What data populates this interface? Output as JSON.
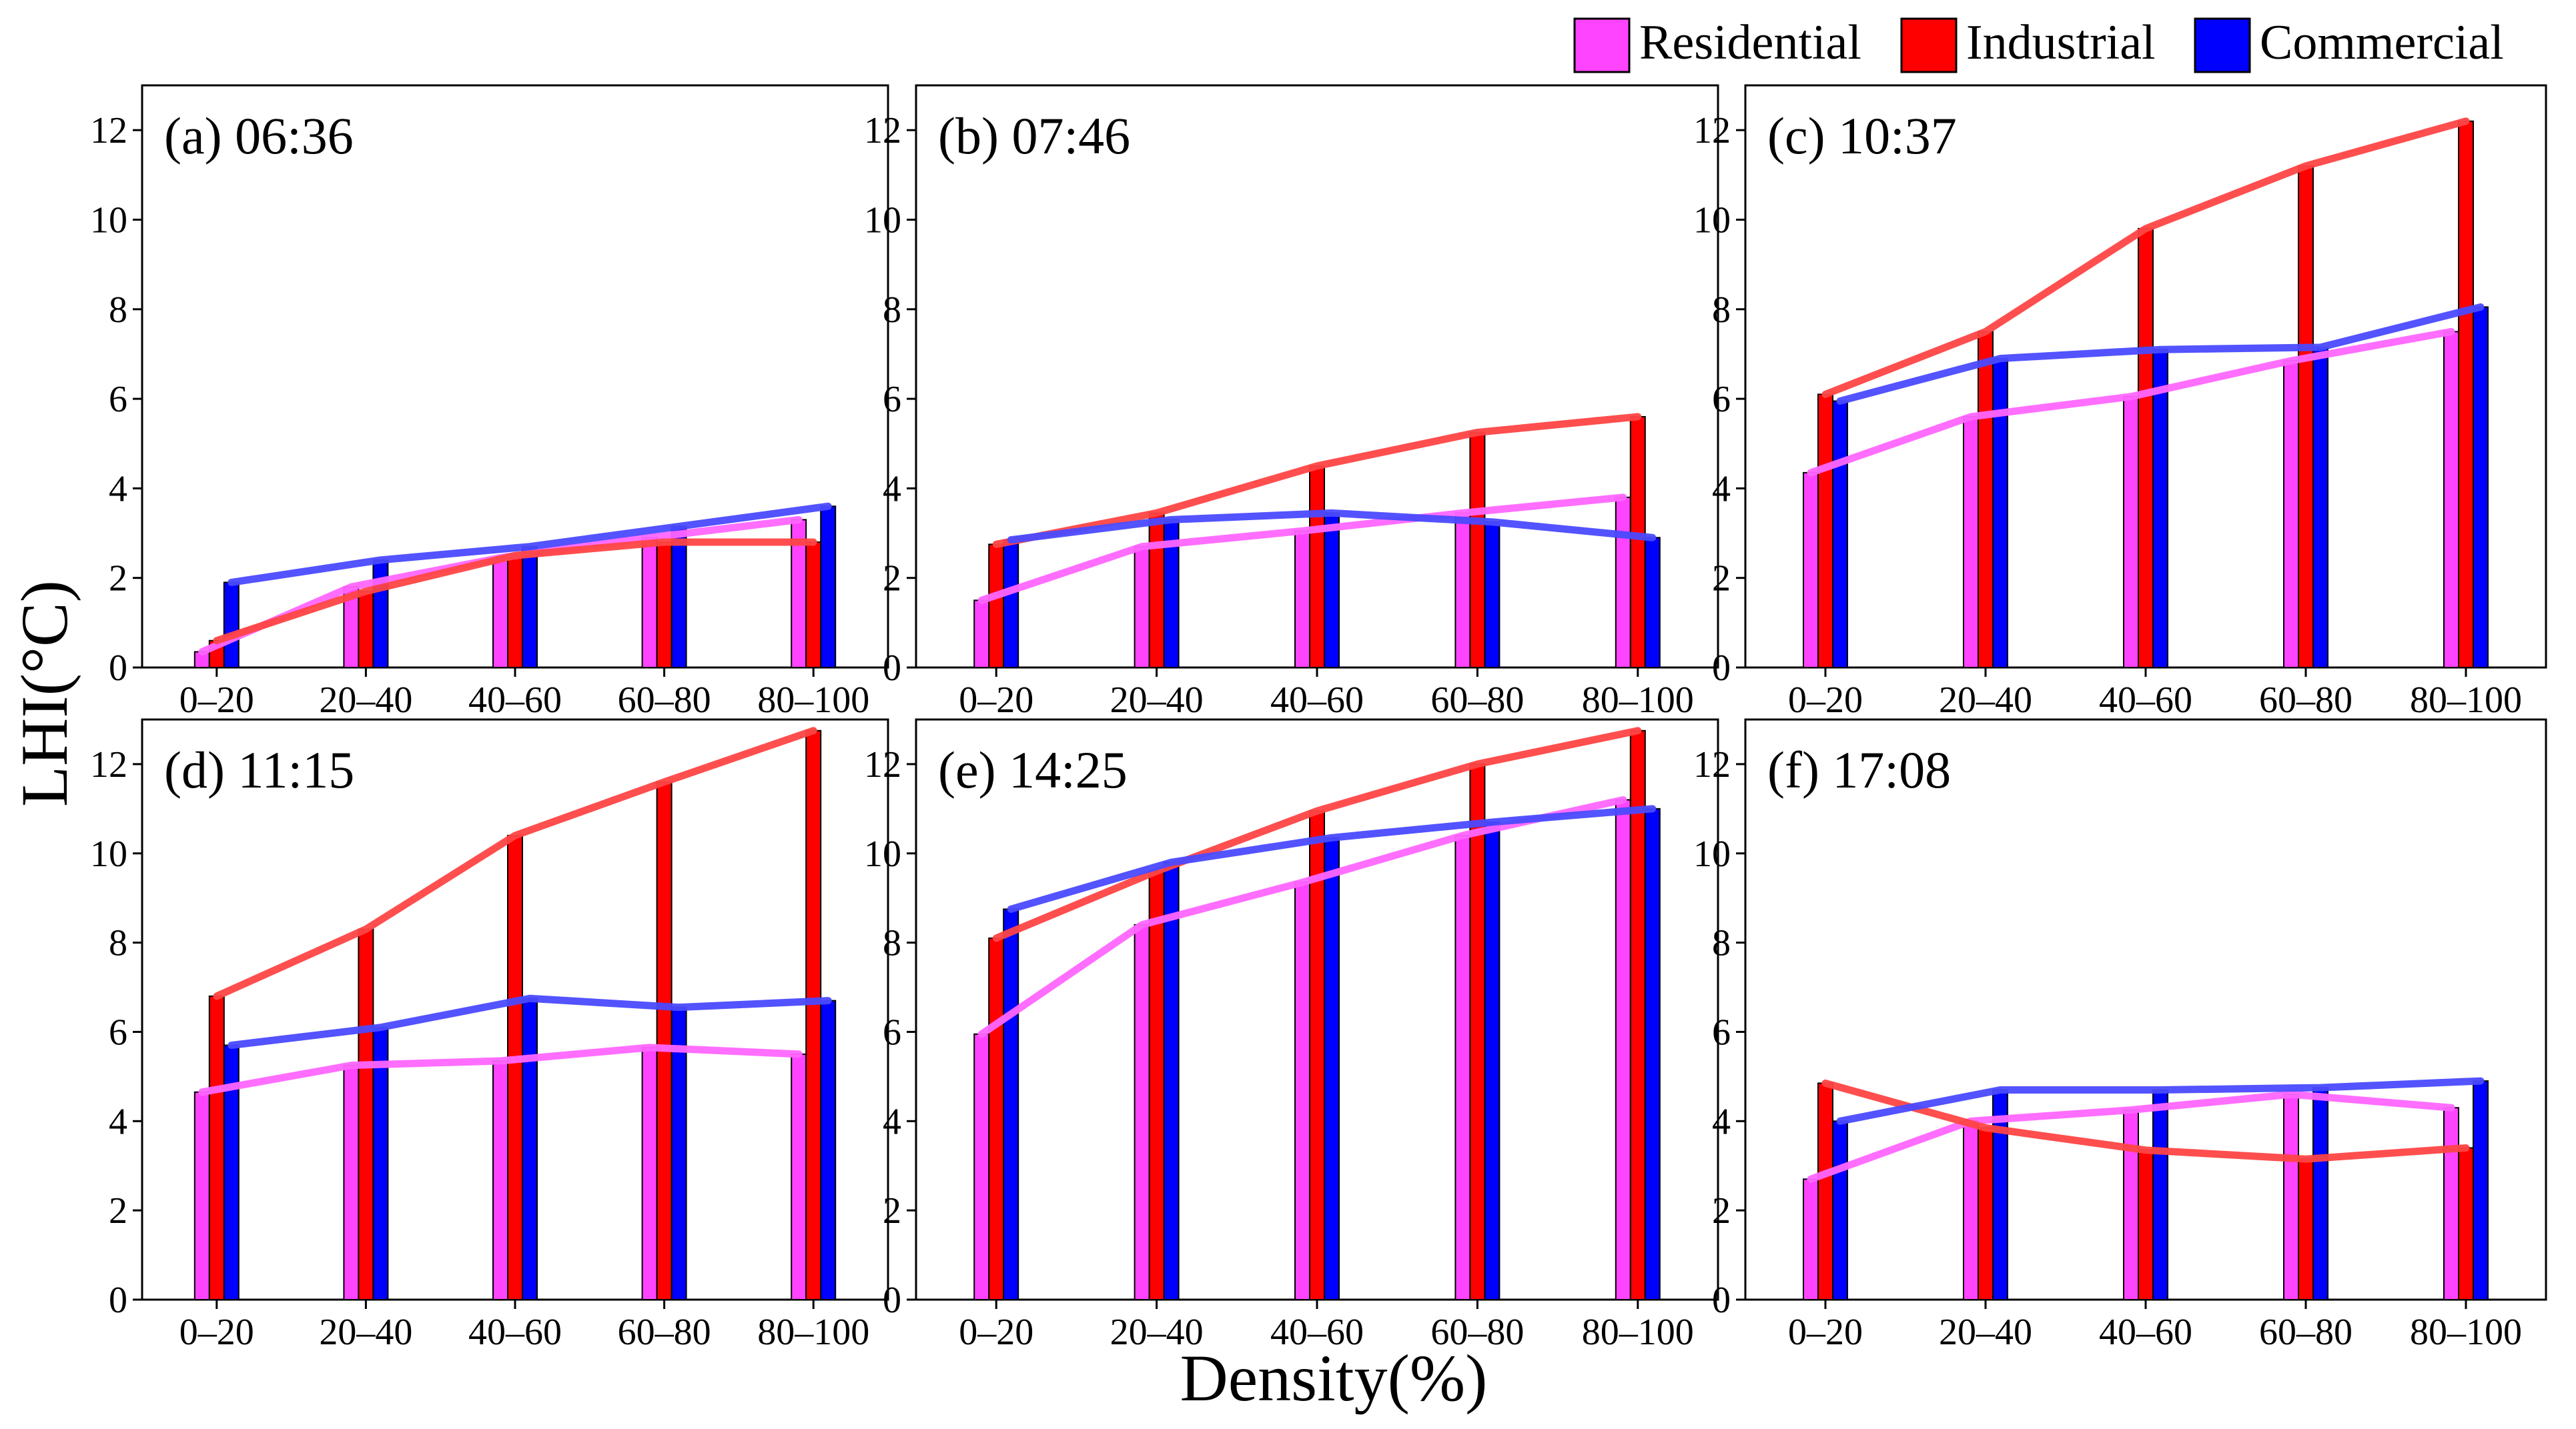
{
  "figure": {
    "ylabel": "LHI(°C)",
    "xlabel": "Density(%)"
  },
  "legend": {
    "items": [
      {
        "label": "Residential",
        "color": "#ff44ff"
      },
      {
        "label": "Industrial",
        "color": "#ff0000"
      },
      {
        "label": "Commercial",
        "color": "#0000ff"
      }
    ]
  },
  "chart_data": [
    {
      "type": "bar",
      "title": "(a) 06:36",
      "categories": [
        "0–20",
        "20–40",
        "40–60",
        "60–80",
        "80–100"
      ],
      "ylim": [
        0,
        13
      ],
      "yticks": [
        "0",
        "2",
        "4",
        "6",
        "8",
        "10",
        "12"
      ],
      "series": [
        {
          "name": "Residential",
          "values": [
            0.35,
            1.8,
            2.45,
            2.9,
            3.3
          ]
        },
        {
          "name": "Industrial",
          "values": [
            0.6,
            1.7,
            2.5,
            2.8,
            2.8
          ]
        },
        {
          "name": "Commercial",
          "values": [
            1.9,
            2.4,
            2.7,
            3.15,
            3.6
          ]
        }
      ]
    },
    {
      "type": "bar",
      "title": "(b) 07:46",
      "categories": [
        "0–20",
        "20–40",
        "40–60",
        "60–80",
        "80–100"
      ],
      "ylim": [
        0,
        13
      ],
      "yticks": [
        "0",
        "2",
        "4",
        "6",
        "8",
        "10",
        "12"
      ],
      "series": [
        {
          "name": "Residential",
          "values": [
            1.5,
            2.7,
            3.05,
            3.45,
            3.8
          ]
        },
        {
          "name": "Industrial",
          "values": [
            2.75,
            3.45,
            4.5,
            5.25,
            5.6
          ]
        },
        {
          "name": "Commercial",
          "values": [
            2.85,
            3.3,
            3.45,
            3.25,
            2.9
          ]
        }
      ]
    },
    {
      "type": "bar",
      "title": "(c) 10:37",
      "categories": [
        "0–20",
        "20–40",
        "40–60",
        "60–80",
        "80–100"
      ],
      "ylim": [
        0,
        13
      ],
      "yticks": [
        "0",
        "2",
        "4",
        "6",
        "8",
        "10",
        "12"
      ],
      "series": [
        {
          "name": "Residential",
          "values": [
            4.35,
            5.6,
            6.05,
            6.85,
            7.5
          ]
        },
        {
          "name": "Industrial",
          "values": [
            6.1,
            7.5,
            9.8,
            11.2,
            12.2
          ]
        },
        {
          "name": "Commercial",
          "values": [
            5.95,
            6.9,
            7.1,
            7.15,
            8.05
          ]
        }
      ]
    },
    {
      "type": "bar",
      "title": "(d) 11:15",
      "categories": [
        "0–20",
        "20–40",
        "40–60",
        "60–80",
        "80–100"
      ],
      "ylim": [
        0,
        13
      ],
      "yticks": [
        "0",
        "2",
        "4",
        "6",
        "8",
        "10",
        "12"
      ],
      "series": [
        {
          "name": "Residential",
          "values": [
            4.65,
            5.25,
            5.35,
            5.65,
            5.5
          ]
        },
        {
          "name": "Industrial",
          "values": [
            6.8,
            8.3,
            10.4,
            11.6,
            12.75
          ]
        },
        {
          "name": "Commercial",
          "values": [
            5.7,
            6.1,
            6.75,
            6.55,
            6.7
          ]
        }
      ]
    },
    {
      "type": "bar",
      "title": "(e) 14:25",
      "categories": [
        "0–20",
        "20–40",
        "40–60",
        "60–80",
        "80–100"
      ],
      "ylim": [
        0,
        13
      ],
      "yticks": [
        "0",
        "2",
        "4",
        "6",
        "8",
        "10",
        "12"
      ],
      "series": [
        {
          "name": "Residential",
          "values": [
            5.95,
            8.4,
            9.35,
            10.4,
            11.2
          ]
        },
        {
          "name": "Industrial",
          "values": [
            8.1,
            9.6,
            10.95,
            12.0,
            12.75
          ]
        },
        {
          "name": "Commercial",
          "values": [
            8.75,
            9.8,
            10.35,
            10.7,
            11.0
          ]
        }
      ]
    },
    {
      "type": "bar",
      "title": "(f) 17:08",
      "categories": [
        "0–20",
        "20–40",
        "40–60",
        "60–80",
        "80–100"
      ],
      "ylim": [
        0,
        13
      ],
      "yticks": [
        "0",
        "2",
        "4",
        "6",
        "8",
        "10",
        "12"
      ],
      "series": [
        {
          "name": "Residential",
          "values": [
            2.7,
            4.0,
            4.25,
            4.6,
            4.3
          ]
        },
        {
          "name": "Industrial",
          "values": [
            4.85,
            3.85,
            3.35,
            3.15,
            3.4
          ]
        },
        {
          "name": "Commercial",
          "values": [
            4.0,
            4.7,
            4.7,
            4.75,
            4.9
          ]
        }
      ]
    }
  ]
}
